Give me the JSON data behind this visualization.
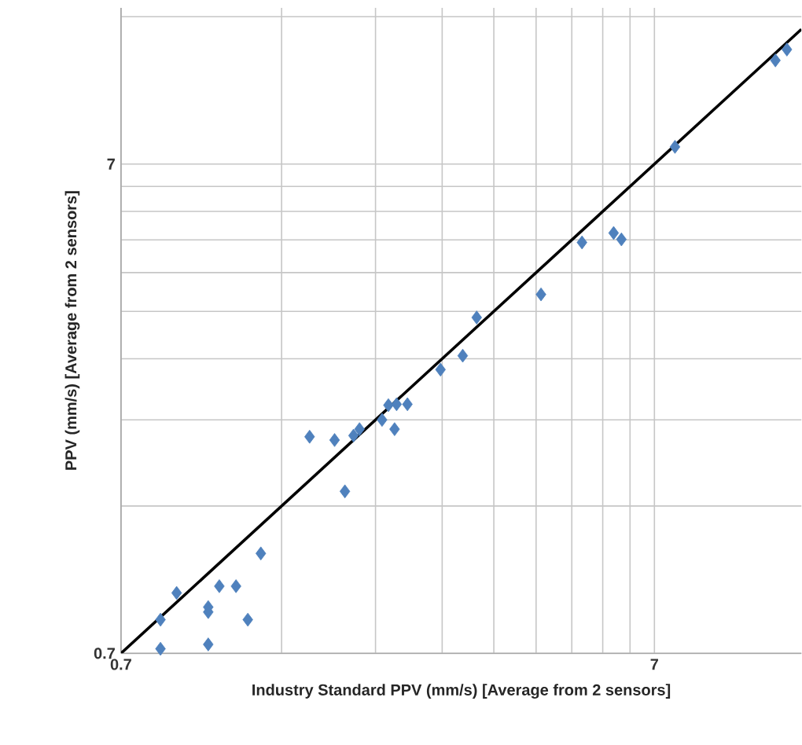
{
  "chart_data": {
    "type": "scatter",
    "xlabel": "Industry Standard PPV (mm/s) [Average from 2 sensors]",
    "ylabel": "PPV (mm/s) [Average from 2 sensors]",
    "log": "xy",
    "grid": true,
    "marker": "diamond",
    "xlim": [
      0.7,
      13.2
    ],
    "ylim": [
      0.7,
      14.6
    ],
    "xticks": [
      0.7,
      {
        "value": 1.4,
        "label": null
      },
      {
        "value": 2.1,
        "label": null
      },
      {
        "value": 2.8,
        "label": null
      },
      {
        "value": 3.5,
        "label": null
      },
      {
        "value": 4.2,
        "label": null
      },
      {
        "value": 4.9,
        "label": null
      },
      {
        "value": 5.6,
        "label": null
      },
      {
        "value": 6.3,
        "label": null
      },
      7
    ],
    "yticks": [
      0.7,
      {
        "value": 1.4,
        "label": null
      },
      {
        "value": 2.1,
        "label": null
      },
      {
        "value": 2.8,
        "label": null
      },
      {
        "value": 3.5,
        "label": null
      },
      {
        "value": 4.2,
        "label": null
      },
      {
        "value": 4.9,
        "label": null
      },
      {
        "value": 5.6,
        "label": null
      },
      {
        "value": 6.3,
        "label": null
      },
      7,
      {
        "value": 14,
        "label": null
      }
    ],
    "series": [
      {
        "color": "#4f81bd",
        "x": [
          0.83,
          0.83,
          0.89,
          1.02,
          1.02,
          1.02,
          1.07,
          1.15,
          1.21,
          1.28,
          1.58,
          1.76,
          1.84,
          1.91,
          1.96,
          2.16,
          2.22,
          2.28,
          2.3,
          2.41,
          2.78,
          3.06,
          3.25,
          4.29,
          5.12,
          5.87,
          6.07,
          7.65,
          11.8,
          12.4
        ],
        "values": [
          0.715,
          0.82,
          0.93,
          0.87,
          0.85,
          0.73,
          0.96,
          0.96,
          0.82,
          1.12,
          1.94,
          1.91,
          1.5,
          1.95,
          2.01,
          2.1,
          2.25,
          2.01,
          2.26,
          2.26,
          2.66,
          2.84,
          3.4,
          3.79,
          4.84,
          5.06,
          4.91,
          7.59,
          11.4,
          12.0
        ]
      },
      {
        "type": "line",
        "color": "#000000",
        "marker": "none",
        "x": [
          0.7,
          13.2
        ],
        "values": [
          0.7,
          13.2
        ]
      }
    ]
  }
}
